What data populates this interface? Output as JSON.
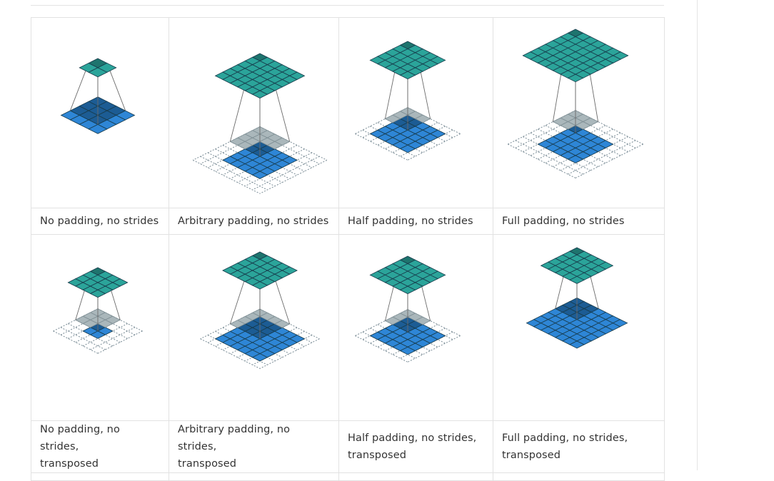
{
  "colors": {
    "output": "#2ba49a",
    "output_highlight": "#1e746e",
    "input": "#2e86d6",
    "input_highlight": "#1c5c94",
    "kernel_on_padding": "#aab7bb",
    "padding_dash": "#7a8c96",
    "edge": "#173a4a"
  },
  "figures": [
    {
      "caption": "No padding, no strides",
      "caption_line2": "",
      "output_size": 2,
      "input_size": 4,
      "padding": 0,
      "kernel": 3,
      "icon": "convolution-animation"
    },
    {
      "caption": "Arbitrary padding, no strides",
      "caption_line2": "",
      "output_size": 6,
      "input_size": 5,
      "padding": 2,
      "kernel": 4,
      "icon": "convolution-animation"
    },
    {
      "caption": "Half padding, no strides",
      "caption_line2": "",
      "output_size": 5,
      "input_size": 5,
      "padding": 1,
      "kernel": 3,
      "icon": "convolution-animation"
    },
    {
      "caption": "Full padding, no strides",
      "caption_line2": "",
      "output_size": 7,
      "input_size": 5,
      "padding": 2,
      "kernel": 3,
      "icon": "convolution-animation"
    },
    {
      "caption": "No padding, no strides,",
      "caption_line2": "transposed",
      "output_size": 4,
      "input_size": 2,
      "padding": 2,
      "kernel": 3,
      "icon": "transposed-convolution-animation"
    },
    {
      "caption": "Arbitrary padding, no strides,",
      "caption_line2": "transposed",
      "output_size": 5,
      "input_size": 6,
      "padding": 1,
      "kernel": 4,
      "icon": "transposed-convolution-animation"
    },
    {
      "caption": "Half padding, no strides,",
      "caption_line2": "transposed",
      "output_size": 5,
      "input_size": 5,
      "padding": 1,
      "kernel": 3,
      "icon": "transposed-convolution-animation"
    },
    {
      "caption": "Full padding, no strides,",
      "caption_line2": "transposed",
      "output_size": 5,
      "input_size": 7,
      "padding": 0,
      "kernel": 3,
      "icon": "transposed-convolution-animation"
    }
  ]
}
